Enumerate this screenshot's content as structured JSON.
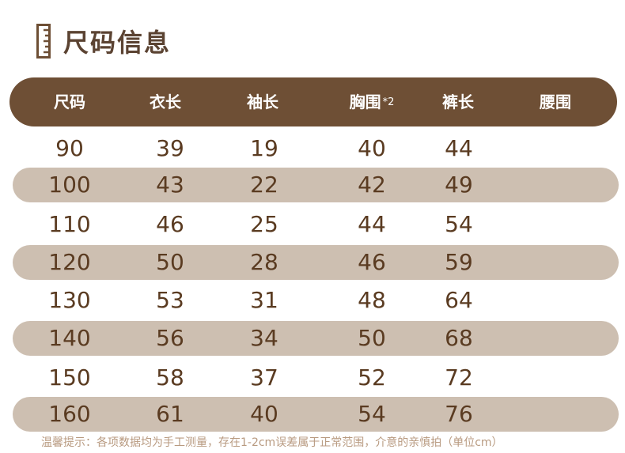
{
  "header": {
    "title": "尺码信息"
  },
  "table": {
    "columns": [
      {
        "label": "尺码",
        "suffix": ""
      },
      {
        "label": "衣长",
        "suffix": ""
      },
      {
        "label": "袖长",
        "suffix": ""
      },
      {
        "label": "胸围",
        "suffix": "*2"
      },
      {
        "label": "裤长",
        "suffix": ""
      },
      {
        "label": "腰围",
        "suffix": ""
      }
    ],
    "rows": [
      [
        "90",
        "39",
        "19",
        "40",
        "44",
        ""
      ],
      [
        "100",
        "43",
        "22",
        "42",
        "49",
        ""
      ],
      [
        "110",
        "46",
        "25",
        "44",
        "54",
        ""
      ],
      [
        "120",
        "50",
        "28",
        "46",
        "59",
        ""
      ],
      [
        "130",
        "53",
        "31",
        "48",
        "64",
        ""
      ],
      [
        "140",
        "56",
        "34",
        "50",
        "68",
        ""
      ],
      [
        "150",
        "58",
        "37",
        "52",
        "72",
        ""
      ],
      [
        "160",
        "61",
        "40",
        "54",
        "76",
        ""
      ]
    ]
  },
  "footer": {
    "note": "温馨提示：各项数据均为手工测量，存在1-2cm误差属于正常范围，介意的亲慎拍（单位cm）"
  },
  "colors": {
    "header_bg": "#6e4f35",
    "shaded_row": "#cdbfb1",
    "value_text": "#5a3b21",
    "title_text": "#5b4332",
    "note_text": "#b89a80"
  },
  "icons": {
    "title_icon": "ruler-icon"
  }
}
